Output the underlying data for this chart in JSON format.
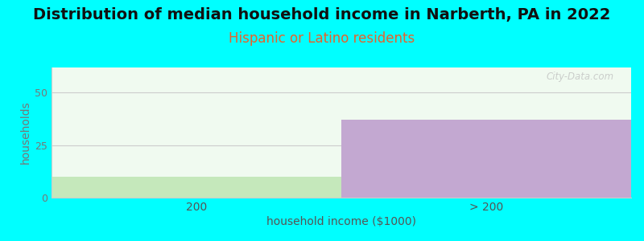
{
  "title": "Distribution of median household income in Narberth, PA in 2022",
  "subtitle": "Hispanic or Latino residents",
  "xlabel": "household income ($1000)",
  "ylabel": "households",
  "categories": [
    "200",
    "> 200"
  ],
  "values": [
    10,
    37
  ],
  "bar_colors": [
    "#c5e8bb",
    "#c3a8d1"
  ],
  "ylim": [
    0,
    62
  ],
  "yticks": [
    0,
    25,
    50
  ],
  "background_color": "#00ffff",
  "title_fontsize": 14,
  "subtitle_fontsize": 12,
  "subtitle_color": "#e8622a",
  "axis_label_fontsize": 10,
  "watermark": "City-Data.com",
  "plot_bg_color": "#f0faf0"
}
